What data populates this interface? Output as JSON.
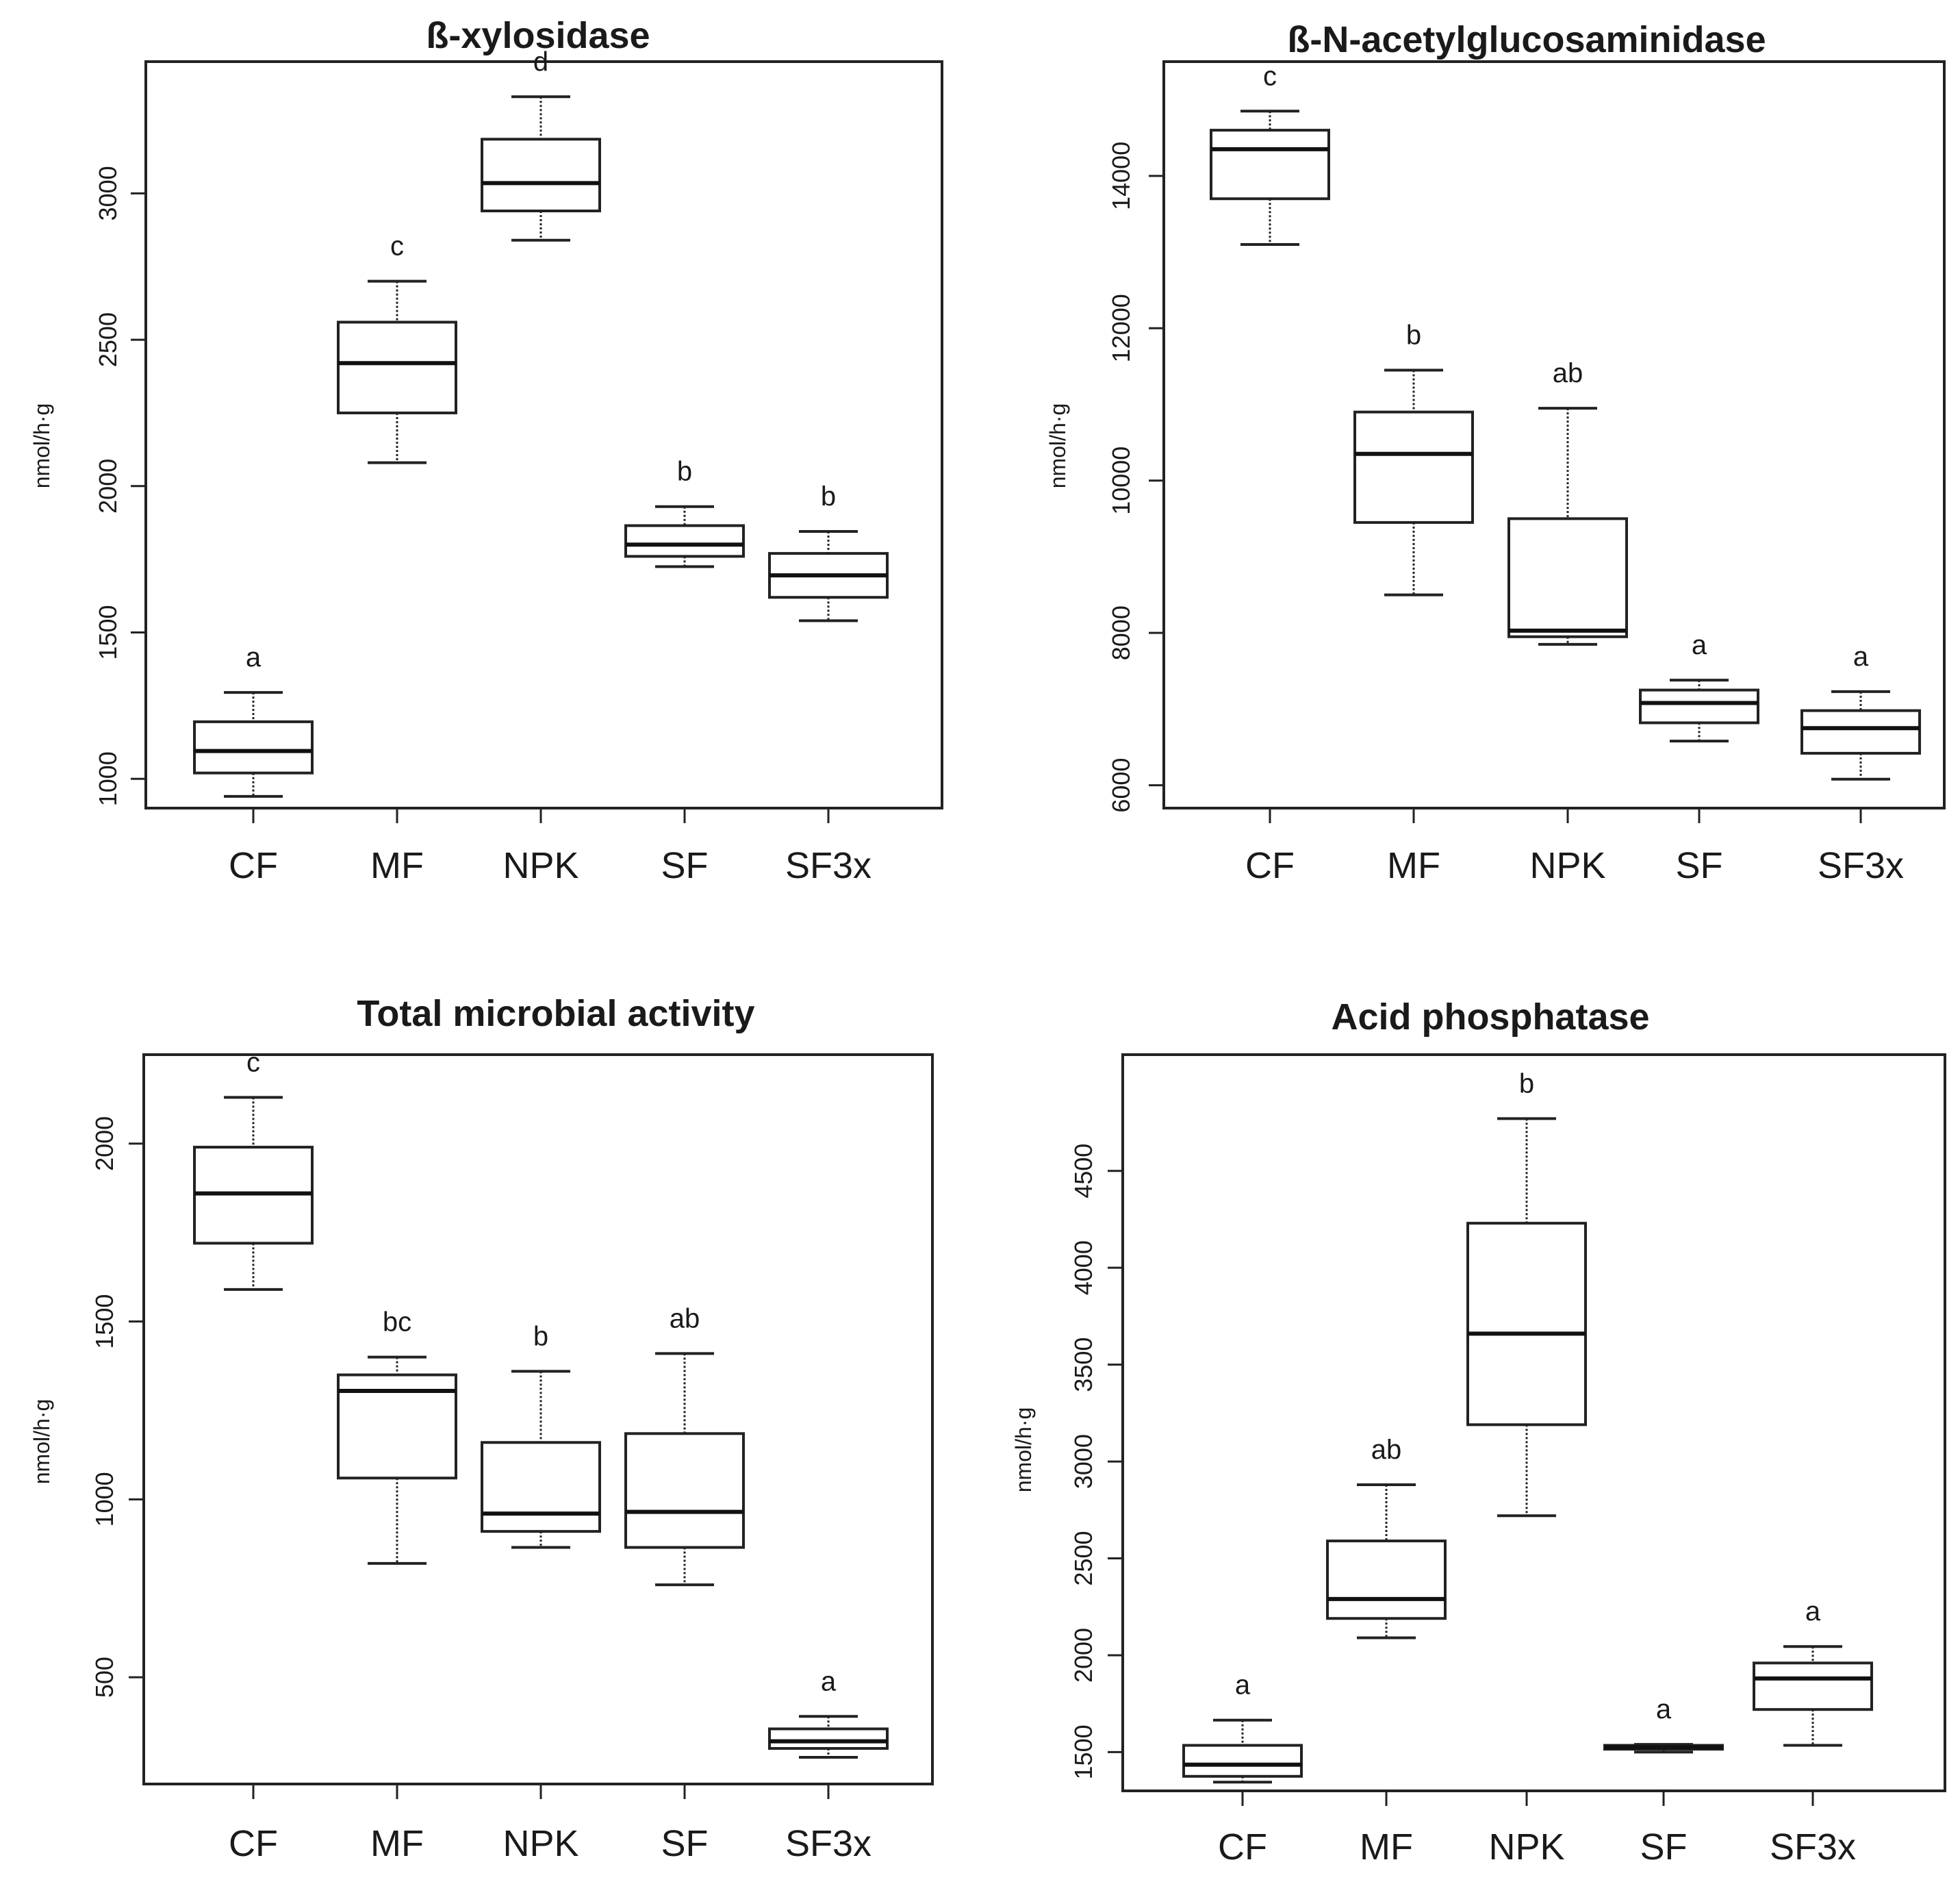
{
  "chart_data": [
    {
      "type": "boxplot",
      "title": "ß-xylosidase",
      "ylabel": "nmol/h·g",
      "ylim": [
        900,
        3450
      ],
      "yticks": [
        1000,
        1500,
        2000,
        2500,
        3000
      ],
      "categories": [
        "CF",
        "MF",
        "NPK",
        "SF",
        "SF3x"
      ],
      "boxes": [
        {
          "min": 940,
          "q1": 1020,
          "median": 1095,
          "q3": 1195,
          "max": 1295
        },
        {
          "min": 2080,
          "q1": 2250,
          "median": 2420,
          "q3": 2560,
          "max": 2700
        },
        {
          "min": 2840,
          "q1": 2940,
          "median": 3035,
          "q3": 3185,
          "max": 3330
        },
        {
          "min": 1725,
          "q1": 1760,
          "median": 1800,
          "q3": 1865,
          "max": 1930
        },
        {
          "min": 1540,
          "q1": 1620,
          "median": 1695,
          "q3": 1770,
          "max": 1845
        }
      ],
      "letters": [
        "a",
        "c",
        "d",
        "b",
        "b"
      ]
    },
    {
      "type": "boxplot",
      "title": "ß-N-acetylglucosaminidase",
      "ylabel": "nmol/h·g",
      "ylim": [
        5700,
        15500
      ],
      "yticks": [
        6000,
        8000,
        10000,
        12000,
        14000
      ],
      "categories": [
        "CF",
        "MF",
        "NPK",
        "SF",
        "SF3x"
      ],
      "boxes": [
        {
          "min": 13100,
          "q1": 13700,
          "median": 14350,
          "q3": 14600,
          "max": 14850
        },
        {
          "min": 8500,
          "q1": 9450,
          "median": 10350,
          "q3": 10900,
          "max": 11450
        },
        {
          "min": 7850,
          "q1": 7950,
          "median": 8030,
          "q3": 9500,
          "max": 10950
        },
        {
          "min": 6580,
          "q1": 6820,
          "median": 7080,
          "q3": 7250,
          "max": 7380
        },
        {
          "min": 6080,
          "q1": 6420,
          "median": 6750,
          "q3": 6980,
          "max": 7230
        }
      ],
      "letters": [
        "c",
        "b",
        "ab",
        "a",
        "a"
      ]
    },
    {
      "type": "boxplot",
      "title": "Total microbial activity",
      "ylabel": "nmol/h·g",
      "ylim": [
        200,
        2250
      ],
      "yticks": [
        500,
        1000,
        1500,
        2000
      ],
      "categories": [
        "CF",
        "MF",
        "NPK",
        "SF",
        "SF3x"
      ],
      "boxes": [
        {
          "min": 1590,
          "q1": 1720,
          "median": 1860,
          "q3": 1990,
          "max": 2130
        },
        {
          "min": 820,
          "q1": 1060,
          "median": 1305,
          "q3": 1350,
          "max": 1400
        },
        {
          "min": 865,
          "q1": 910,
          "median": 960,
          "q3": 1160,
          "max": 1360
        },
        {
          "min": 760,
          "q1": 865,
          "median": 965,
          "q3": 1185,
          "max": 1410
        },
        {
          "min": 275,
          "q1": 300,
          "median": 320,
          "q3": 355,
          "max": 390
        }
      ],
      "letters": [
        "c",
        "bc",
        "b",
        "ab",
        "a"
      ]
    },
    {
      "type": "boxplot",
      "title": "Acid phosphatase",
      "ylabel": "nmol/h·g",
      "ylim": [
        1300,
        5100
      ],
      "yticks": [
        1500,
        2000,
        2500,
        3000,
        3500,
        4000,
        4500
      ],
      "categories": [
        "CF",
        "MF",
        "NPK",
        "SF",
        "SF3x"
      ],
      "boxes": [
        {
          "min": 1345,
          "q1": 1375,
          "median": 1435,
          "q3": 1535,
          "max": 1665
        },
        {
          "min": 2090,
          "q1": 2190,
          "median": 2290,
          "q3": 2590,
          "max": 2880
        },
        {
          "min": 2720,
          "q1": 3190,
          "median": 3660,
          "q3": 4230,
          "max": 4770
        },
        {
          "min": 1500,
          "q1": 1515,
          "median": 1525,
          "q3": 1535,
          "max": 1540
        },
        {
          "min": 1535,
          "q1": 1720,
          "median": 1880,
          "q3": 1960,
          "max": 2045
        }
      ],
      "letters": [
        "a",
        "ab",
        "b",
        "a",
        "a"
      ]
    }
  ]
}
